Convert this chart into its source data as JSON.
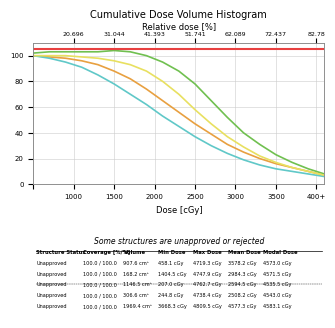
{
  "title": "Cumulative Dose Volume Histogram",
  "xlabel": "Dose [cGy]",
  "xlabel_top": "Relative dose [%]",
  "xlim": [
    500,
    4100
  ],
  "ylim": [
    0,
    110
  ],
  "top_rel": [
    20.696,
    31.044,
    41.393,
    51.741,
    62.089,
    72.437,
    82.78
  ],
  "top_cgy": [
    1000,
    1500,
    2000,
    2500,
    3000,
    3500,
    4000
  ],
  "lines": [
    {
      "color": "#e8a040",
      "x": [
        500,
        700,
        900,
        1100,
        1300,
        1500,
        1700,
        1900,
        2100,
        2300,
        2500,
        2700,
        2900,
        3100,
        3300,
        3500,
        3700,
        3900,
        4100
      ],
      "y": [
        100,
        99,
        98,
        96,
        93,
        88,
        82,
        74,
        65,
        56,
        47,
        39,
        31,
        25,
        20,
        16,
        13,
        10,
        7
      ],
      "linewidth": 1.2
    },
    {
      "color": "#70c050",
      "x": [
        500,
        700,
        900,
        1100,
        1300,
        1500,
        1700,
        1900,
        2100,
        2300,
        2500,
        2700,
        2900,
        3100,
        3300,
        3500,
        3700,
        3900,
        4100
      ],
      "y": [
        102,
        103,
        103,
        103,
        103,
        104,
        103,
        100,
        95,
        88,
        78,
        65,
        52,
        40,
        31,
        23,
        17,
        12,
        8
      ],
      "linewidth": 1.2
    },
    {
      "color": "#60c8c8",
      "x": [
        500,
        700,
        900,
        1100,
        1300,
        1500,
        1700,
        1900,
        2100,
        2300,
        2500,
        2700,
        2900,
        3100,
        3300,
        3500,
        3700,
        3900,
        4100
      ],
      "y": [
        100,
        98,
        95,
        91,
        85,
        78,
        70,
        62,
        53,
        45,
        37,
        30,
        24,
        19,
        15,
        12,
        10,
        8,
        6
      ],
      "linewidth": 1.2
    },
    {
      "color": "#e8e060",
      "x": [
        500,
        700,
        900,
        1100,
        1300,
        1500,
        1700,
        1900,
        2100,
        2300,
        2500,
        2700,
        2900,
        3100,
        3300,
        3500,
        3700,
        3900,
        4100
      ],
      "y": [
        100,
        100,
        100,
        99,
        98,
        96,
        93,
        88,
        80,
        70,
        58,
        47,
        37,
        29,
        22,
        17,
        13,
        10,
        7
      ],
      "linewidth": 1.2
    },
    {
      "color": "#e84040",
      "x": [
        500,
        4100
      ],
      "y": [
        105,
        105
      ],
      "linewidth": 1.5
    }
  ],
  "grid_color": "#cccccc",
  "bg_color": "#ffffff",
  "table_title": "Some structures are unapproved or rejected",
  "table_headers": [
    "Structure Status",
    "Coverage [%/%]",
    "Volume",
    "Min Dose",
    "Max Dose",
    "Mean Dose",
    "Modal Dose"
  ],
  "table_rows": [
    [
      "Unapproved",
      "100.0 / 100.0",
      "907.6 cm³",
      "458.1 cGy",
      "4719.3 cGy",
      "3578.2 cGy",
      "4573.0 cGy"
    ],
    [
      "Unapproved",
      "100.0 / 100.0",
      "168.2 cm³",
      "1404.5 cGy",
      "4747.9 cGy",
      "2984.3 cGy",
      "4571.5 cGy"
    ],
    [
      "Unapproved",
      "100.0 / 100.0",
      "1146.5 cm³",
      "207.0 cGy",
      "4762.7 cGy",
      "2594.5 cGy",
      "4535.5 cGy"
    ],
    [
      "Unapproved",
      "100.0 / 100.0",
      "306.6 cm³",
      "244.8 cGy",
      "4738.4 cGy",
      "2508.2 cGy",
      "4543.0 cGy"
    ],
    [
      "Unapproved",
      "100.0 / 100.0",
      "1969.4 cm³",
      "3668.3 cGy",
      "4809.5 cGy",
      "4577.3 cGy",
      "4583.1 cGy"
    ]
  ]
}
